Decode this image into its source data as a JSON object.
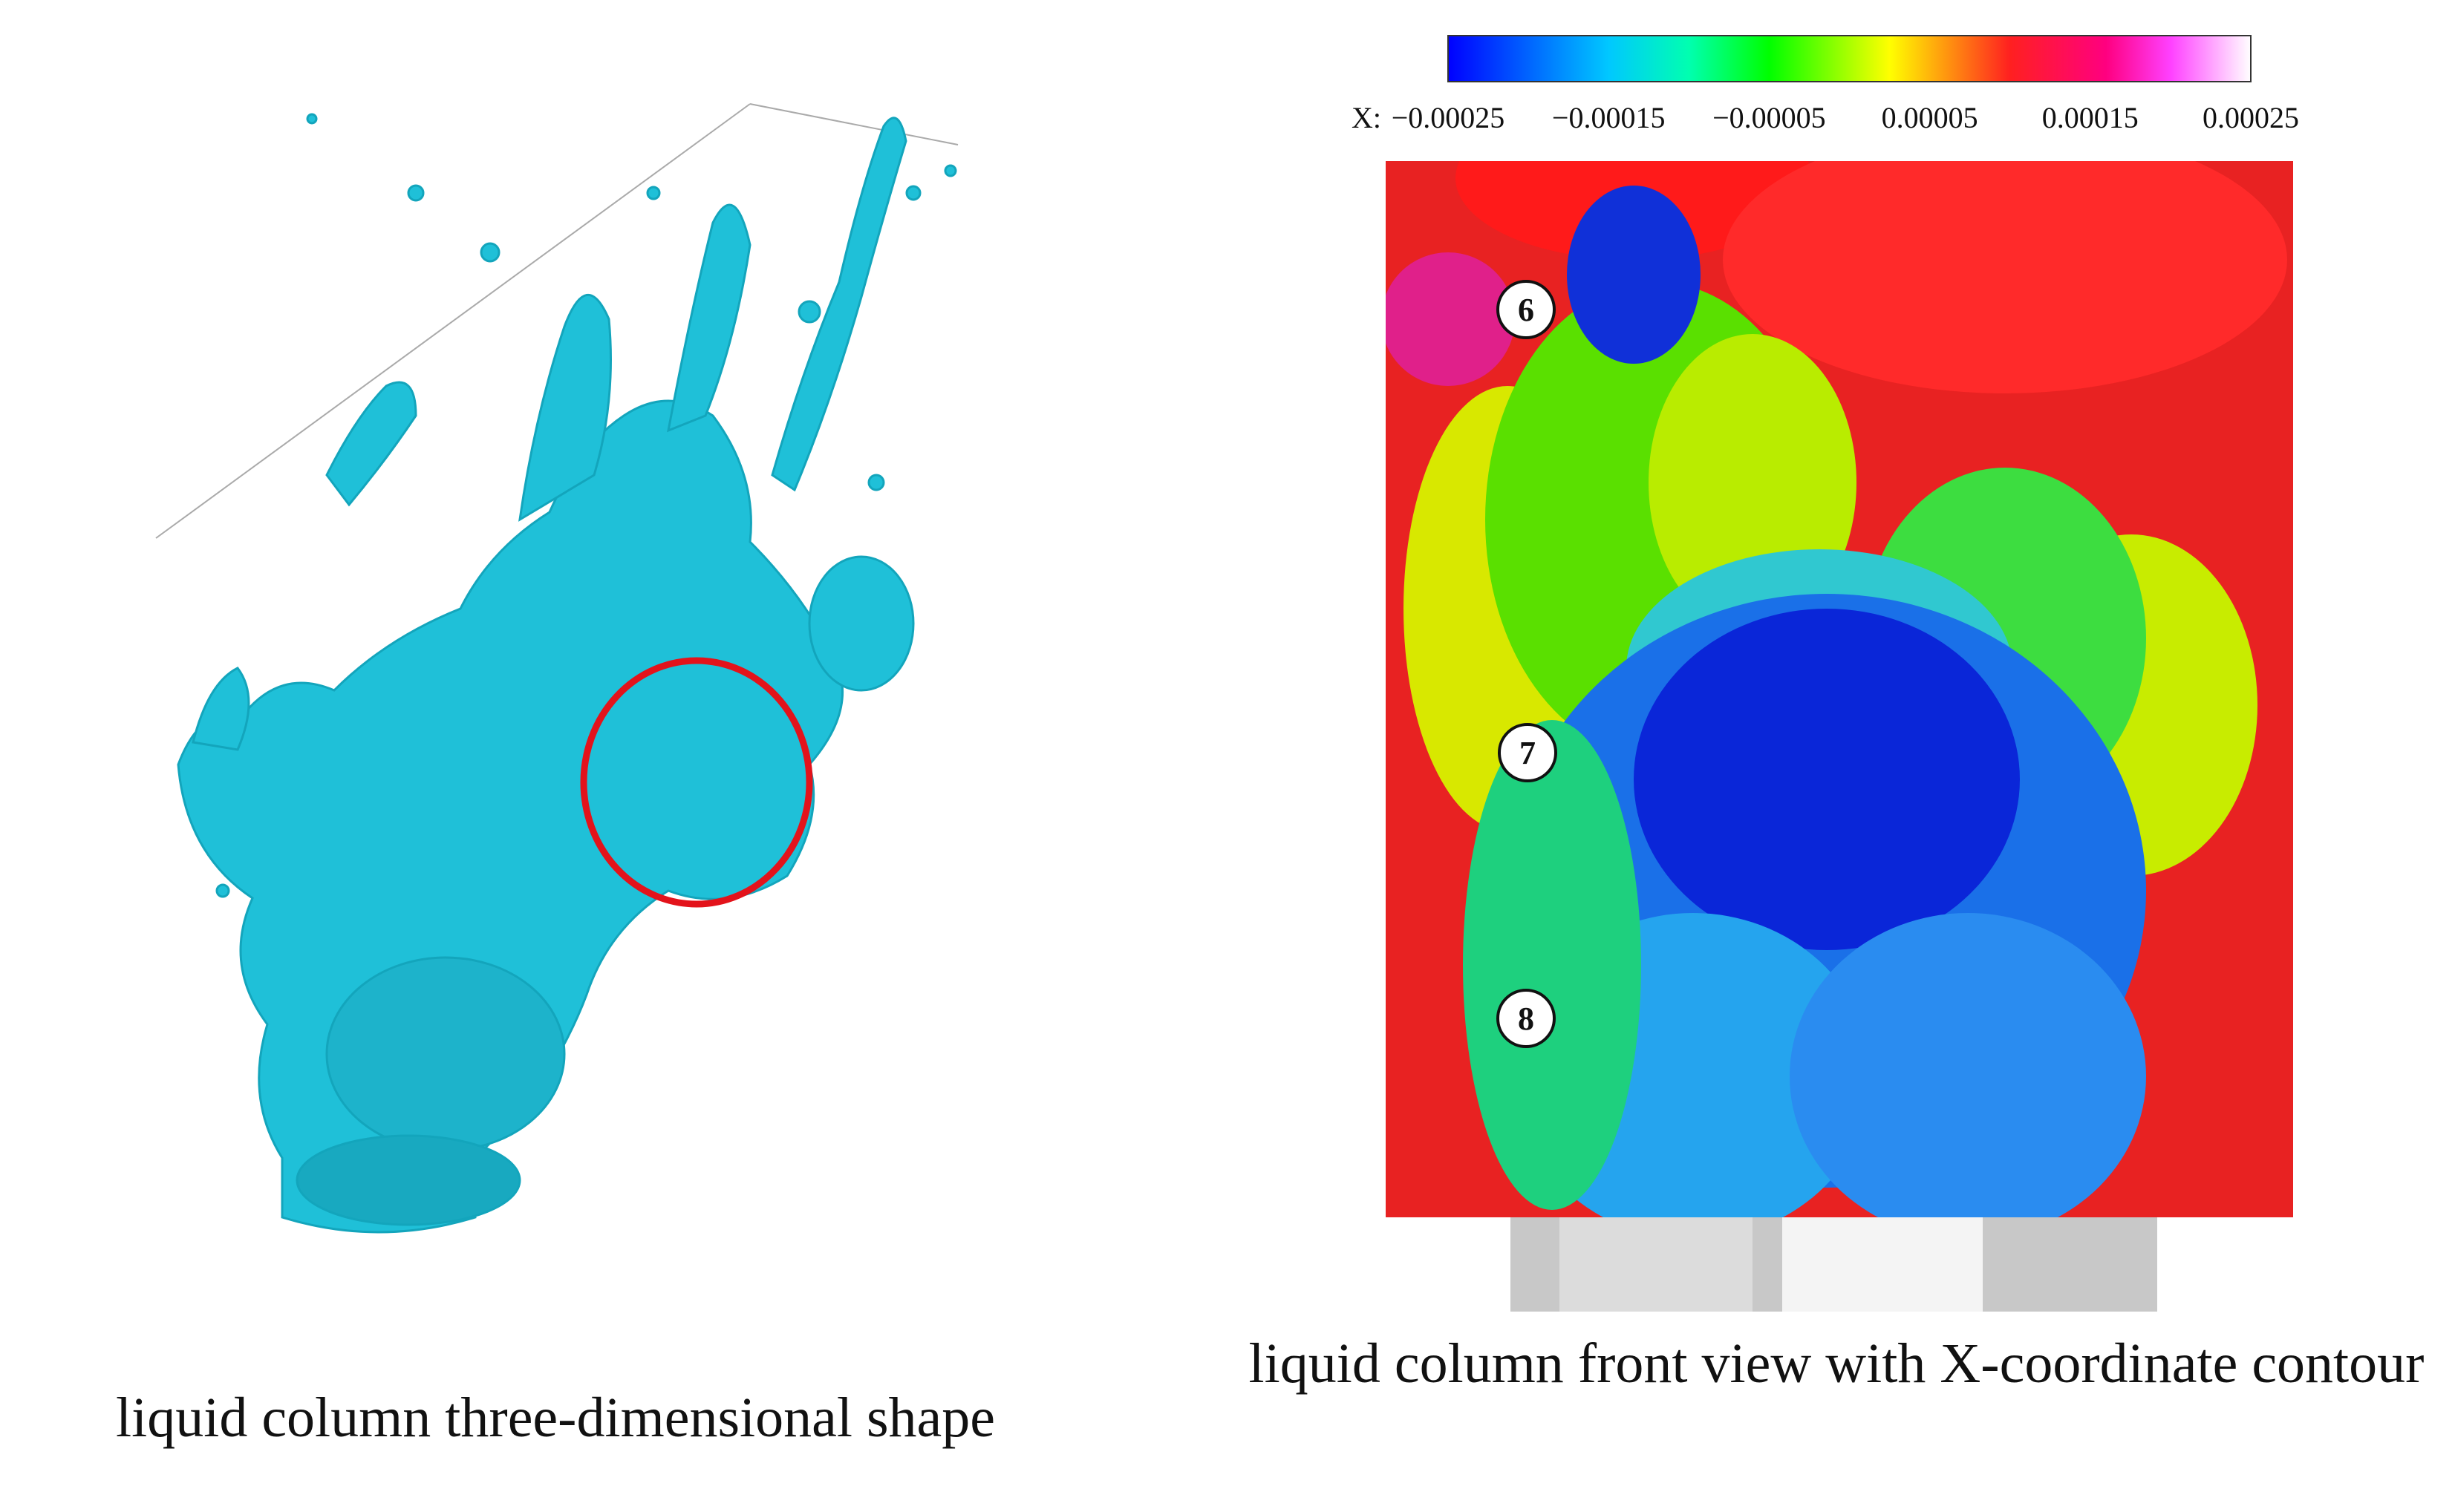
{
  "left_panel": {
    "caption": "liquid column three-dimensional shape"
  },
  "right_panel": {
    "caption": "liquid column front view with X-coordinate contour",
    "colorbar": {
      "axis_label": "X:",
      "range": [
        -0.00025,
        0.00025
      ],
      "ticks": [
        {
          "value": -0.00025,
          "label": "−0.00025"
        },
        {
          "value": -0.00015,
          "label": "−0.00015"
        },
        {
          "value": -5e-05,
          "label": "−0.00005"
        },
        {
          "value": 5e-05,
          "label": "0.00005"
        },
        {
          "value": 0.00015,
          "label": "0.00015"
        },
        {
          "value": 0.00025,
          "label": "0.00025"
        }
      ]
    },
    "markers": [
      "6",
      "7",
      "8"
    ]
  }
}
